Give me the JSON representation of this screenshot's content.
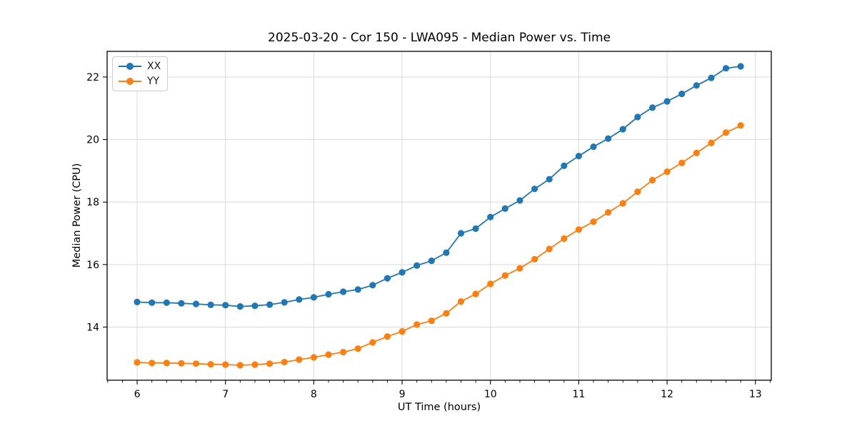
{
  "figure": {
    "title": "2025-03-20 - Cor 150 - LWA095 - Median Power vs. Time"
  },
  "chart_data": {
    "type": "line",
    "title": "2025-03-20 - Cor 150 - LWA095 - Median Power vs. Time",
    "xlabel": "UT Time (hours)",
    "ylabel": "Median Power (CPU)",
    "xlim": [
      5.66,
      13.18
    ],
    "ylim": [
      12.3,
      22.82
    ],
    "x_ticks": [
      6,
      7,
      8,
      9,
      10,
      11,
      12,
      13
    ],
    "y_ticks": [
      14,
      16,
      18,
      20,
      22
    ],
    "x_minor_step": 0.1666667,
    "grid": true,
    "grid_color": "#d9d9d9",
    "legend_position": "upper-left",
    "marker": "circle",
    "x": [
      6.0,
      6.1667,
      6.3333,
      6.5,
      6.6667,
      6.8333,
      7.0,
      7.1667,
      7.3333,
      7.5,
      7.6667,
      7.8333,
      8.0,
      8.1667,
      8.3333,
      8.5,
      8.6667,
      8.8333,
      9.0,
      9.1667,
      9.3333,
      9.5,
      9.6667,
      9.8333,
      10.0,
      10.1667,
      10.3333,
      10.5,
      10.6667,
      10.8333,
      11.0,
      11.1667,
      11.3333,
      11.5,
      11.6667,
      11.8333,
      12.0,
      12.1667,
      12.3333,
      12.5,
      12.6667,
      12.8333
    ],
    "series": [
      {
        "name": "XX",
        "color": "#1f77b4",
        "values": [
          14.8,
          14.78,
          14.78,
          14.76,
          14.74,
          14.71,
          14.7,
          14.66,
          14.68,
          14.72,
          14.79,
          14.88,
          14.95,
          15.05,
          15.13,
          15.2,
          15.34,
          15.56,
          15.75,
          15.97,
          16.12,
          16.38,
          17.0,
          17.15,
          17.52,
          17.79,
          18.05,
          18.42,
          18.73,
          19.16,
          19.47,
          19.77,
          20.03,
          20.33,
          20.72,
          21.02,
          21.22,
          21.46,
          21.73,
          21.97,
          22.28,
          22.34
        ]
      },
      {
        "name": "YY",
        "color": "#ff7f0e",
        "values": [
          12.87,
          12.85,
          12.85,
          12.84,
          12.83,
          12.81,
          12.8,
          12.78,
          12.8,
          12.83,
          12.88,
          12.96,
          13.03,
          13.12,
          13.2,
          13.31,
          13.51,
          13.7,
          13.86,
          14.08,
          14.2,
          14.44,
          14.82,
          15.06,
          15.38,
          15.65,
          15.88,
          16.17,
          16.5,
          16.83,
          17.12,
          17.37,
          17.67,
          17.96,
          18.33,
          18.7,
          18.97,
          19.25,
          19.57,
          19.89,
          20.22,
          20.45
        ]
      }
    ]
  }
}
